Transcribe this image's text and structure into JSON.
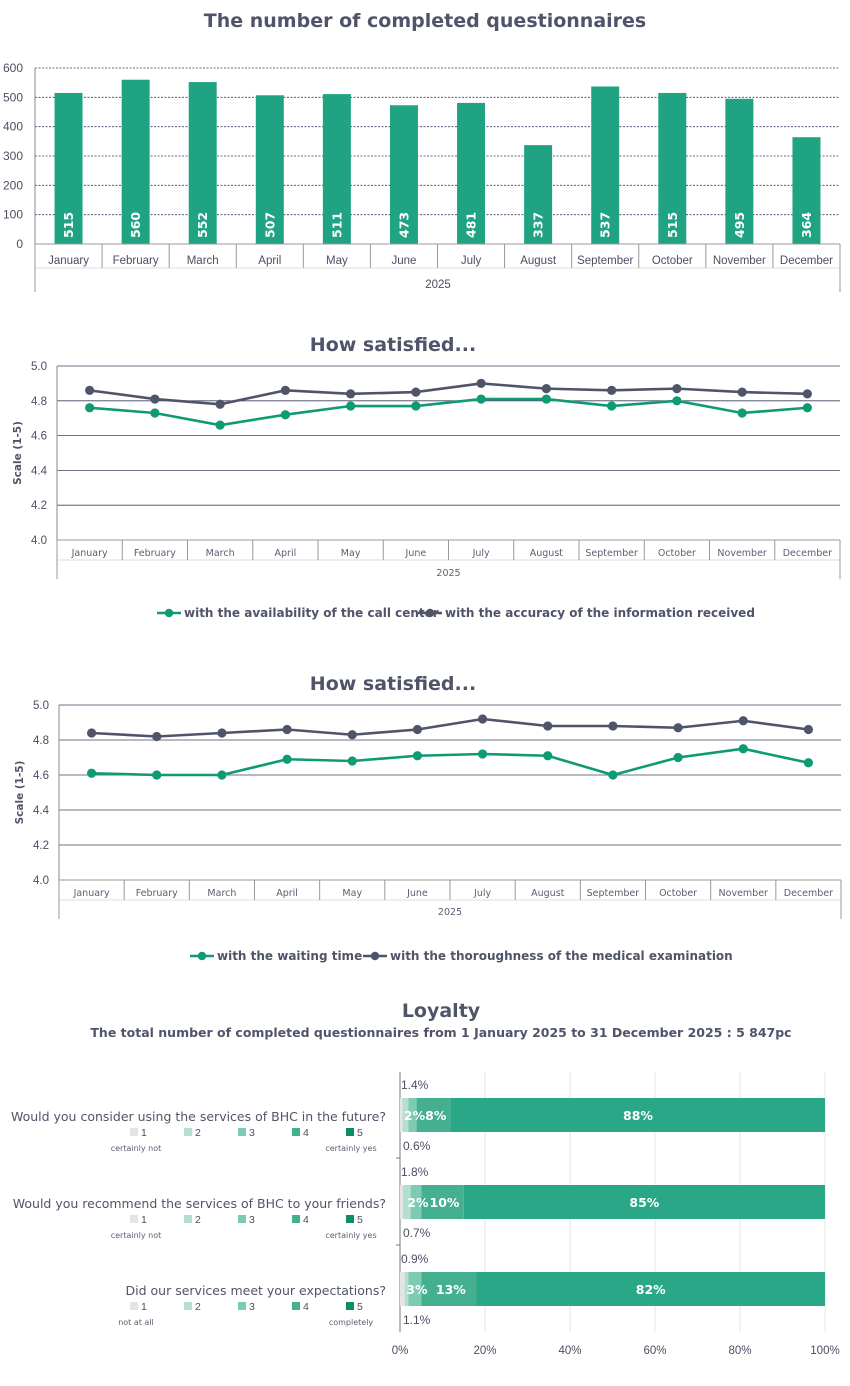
{
  "colors": {
    "teal": "#1fa383",
    "dark": "#505469",
    "grid": "#404060",
    "scale": [
      "#e4e4e4",
      "#b3dfcf",
      "#7fcbb2",
      "#45b08f",
      "#0e8c66"
    ],
    "loyalty_main": "#2aa786"
  },
  "chart_data": [
    {
      "id": "completed",
      "type": "bar",
      "title": "The number of completed questionnaires",
      "xlabel": "2025",
      "categories": [
        "January",
        "February",
        "March",
        "April",
        "May",
        "June",
        "July",
        "August",
        "September",
        "October",
        "November",
        "December"
      ],
      "values": [
        515,
        560,
        552,
        507,
        511,
        473,
        481,
        337,
        537,
        515,
        495,
        364
      ],
      "ylim": [
        0,
        600
      ],
      "yticks": [
        "0",
        "100",
        "200",
        "300",
        "400",
        "500",
        "600"
      ]
    },
    {
      "id": "satisfied1",
      "type": "line",
      "title": "How satisfied...",
      "ylabel": "Scale (1-5)",
      "xlabel": "2025",
      "categories": [
        "January",
        "February",
        "March",
        "April",
        "May",
        "June",
        "July",
        "August",
        "September",
        "October",
        "November",
        "December"
      ],
      "ylim": [
        4.0,
        5.0
      ],
      "yticks": [
        "4.0",
        "4.2",
        "4.4",
        "4.6",
        "4.8",
        "5.0"
      ],
      "series": [
        {
          "name": "with the availability of the call center",
          "color": "#0e9a72",
          "values": [
            4.76,
            4.73,
            4.66,
            4.72,
            4.77,
            4.77,
            4.81,
            4.81,
            4.77,
            4.8,
            4.73,
            4.76
          ]
        },
        {
          "name": "with the accuracy of the information received",
          "color": "#505469",
          "values": [
            4.86,
            4.81,
            4.78,
            4.86,
            4.84,
            4.85,
            4.9,
            4.87,
            4.86,
            4.87,
            4.85,
            4.84
          ]
        }
      ]
    },
    {
      "id": "satisfied2",
      "type": "line",
      "title": "How satisfied...",
      "ylabel": "Scale (1-5)",
      "xlabel": "2025",
      "categories": [
        "January",
        "February",
        "March",
        "April",
        "May",
        "June",
        "July",
        "August",
        "September",
        "October",
        "November",
        "December"
      ],
      "ylim": [
        4.0,
        5.0
      ],
      "yticks": [
        "4.0",
        "4.2",
        "4.4",
        "4.6",
        "4.8",
        "5.0"
      ],
      "series": [
        {
          "name": "with the waiting time",
          "color": "#0e9a72",
          "values": [
            4.61,
            4.6,
            4.6,
            4.69,
            4.68,
            4.71,
            4.72,
            4.71,
            4.6,
            4.7,
            4.75,
            4.67
          ]
        },
        {
          "name": "with the thoroughness of the medical examination",
          "color": "#505469",
          "values": [
            4.84,
            4.82,
            4.84,
            4.86,
            4.83,
            4.86,
            4.92,
            4.88,
            4.88,
            4.87,
            4.91,
            4.86
          ]
        }
      ]
    },
    {
      "id": "loyalty",
      "type": "bar",
      "orientation": "horizontal-stacked",
      "title": "Loyalty",
      "subtitle": "The total number of completed questionnaires from 1 January 2025 to 31 December 2025 : 5 847pc",
      "xticks": [
        "0%",
        "20%",
        "40%",
        "60%",
        "80%",
        "100%"
      ],
      "scale_numbers": [
        "1",
        "2",
        "3",
        "4",
        "5"
      ],
      "questions": [
        {
          "text": "Would you consider using the services of BHC in the future?",
          "low": "certainly not",
          "high": "certainly yes",
          "values": [
            0.6,
            1.4,
            1.9,
            8.1,
            88.0
          ],
          "labels": [
            "0.6%",
            "1.4%",
            "2%",
            "8%",
            "88%"
          ]
        },
        {
          "text": "Would you recommend the services of BHC to your friends?",
          "low": "certainly not",
          "high": "certainly yes",
          "values": [
            0.7,
            1.8,
            2.5,
            10.0,
            85.0
          ],
          "labels": [
            "0.7%",
            "1.8%",
            "2%",
            "10%",
            "85%"
          ]
        },
        {
          "text": "Did our services meet your expectations?",
          "low": "not at all",
          "high": "completely",
          "values": [
            1.1,
            0.9,
            3.0,
            13.0,
            82.0
          ],
          "labels": [
            "1.1%",
            "0.9%",
            "3%",
            "13%",
            "82%"
          ]
        }
      ]
    }
  ]
}
